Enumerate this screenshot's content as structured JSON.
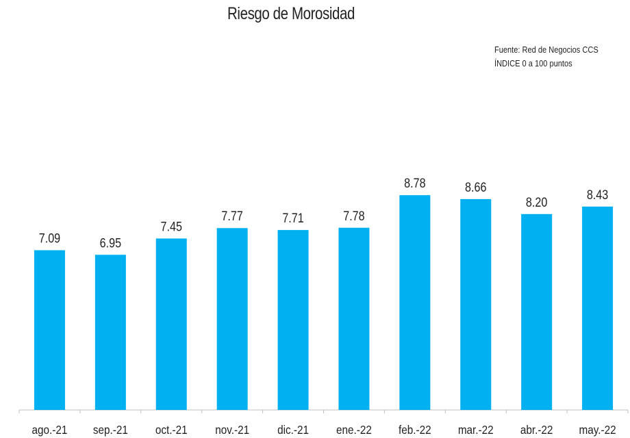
{
  "chart_data": {
    "type": "bar",
    "title": "Riesgo de Morosidad",
    "annotations": [
      "Fuente: Red de Negocios CCS",
      "ÍNDICE 0 a 100  puntos"
    ],
    "categories": [
      "ago.-21",
      "sep.-21",
      "oct.-21",
      "nov.-21",
      "dic.-21",
      "ene.-22",
      "feb.-22",
      "mar.-22",
      "abr.-22",
      "may.-22"
    ],
    "values": [
      7.09,
      6.95,
      7.45,
      7.77,
      7.71,
      7.78,
      8.78,
      8.66,
      8.2,
      8.43
    ],
    "value_labels": [
      "7.09",
      "6.95",
      "7.45",
      "7.77",
      "7.71",
      "7.78",
      "8.78",
      "8.66",
      "8.20",
      "8.43"
    ],
    "bar_color": "#00B0F0",
    "axis_color": "#BFBFBF",
    "xlabel": "",
    "ylabel": "",
    "grid": false,
    "legend": "none"
  }
}
